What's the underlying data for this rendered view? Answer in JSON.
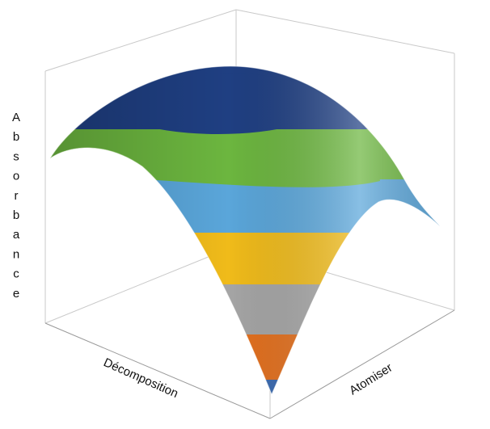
{
  "chart_data": {
    "type": "surface3d",
    "xlabel": "Décomposition",
    "ylabel": "Atomiser",
    "zlabel": "Absorbance",
    "grid": false,
    "legend": "none",
    "bands": [
      {
        "level": 1,
        "color": "#3a6ab0"
      },
      {
        "level": 2,
        "color": "#e3701e"
      },
      {
        "level": 3,
        "color": "#a5a5a5"
      },
      {
        "level": 4,
        "color": "#f0bb1a"
      },
      {
        "level": 5,
        "color": "#5aa6da"
      },
      {
        "level": 6,
        "color": "#6cb63f"
      },
      {
        "level": 7,
        "color": "#1f3f82"
      }
    ]
  }
}
